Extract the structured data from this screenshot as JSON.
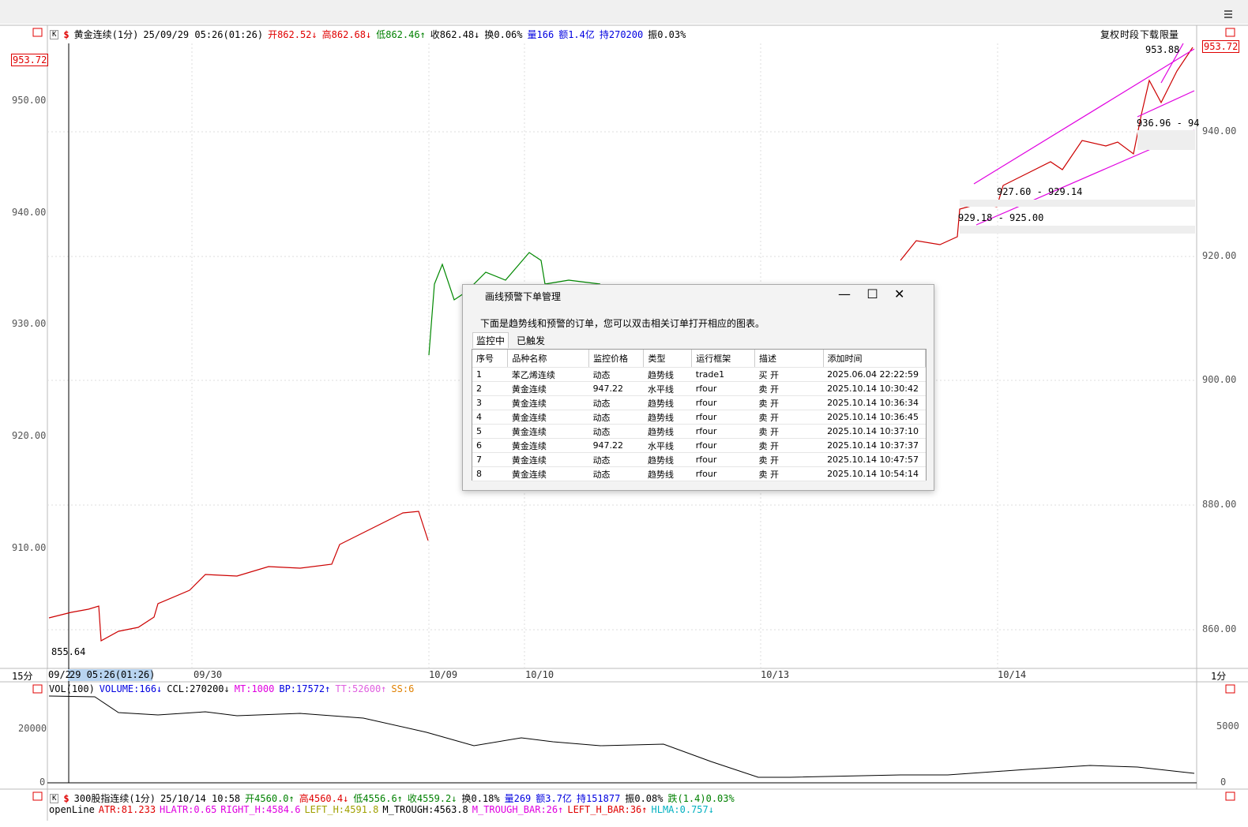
{
  "chart_header": {
    "button": "K",
    "symbol_mark": "$",
    "segments": [
      {
        "text": "黄金连续(1分)",
        "color": "#000"
      },
      {
        "text": "25/09/29 05:26(01:26)",
        "color": "#000"
      },
      {
        "text": "开862.52↓",
        "color": "#e00000"
      },
      {
        "text": "高862.68↓",
        "color": "#e00000"
      },
      {
        "text": "低862.46↑",
        "color": "#008000"
      },
      {
        "text": "收862.48↓",
        "color": "#000"
      },
      {
        "text": "换0.06%",
        "color": "#000"
      },
      {
        "text": "量166",
        "color": "#0000e0"
      },
      {
        "text": "额1.4亿",
        "color": "#0000e0"
      },
      {
        "text": "持270200",
        "color": "#0000e0"
      },
      {
        "text": "振0.03%",
        "color": "#000"
      }
    ]
  },
  "right_buttons": [
    "复权",
    "时段",
    "下载",
    "限量"
  ],
  "left_axis": {
    "current": "953.72",
    "labels": [
      "950.00",
      "940.00",
      "930.00",
      "920.00",
      "910.00"
    ]
  },
  "right_axis": {
    "current": "953.72",
    "labels": [
      "940.00",
      "920.00",
      "900.00",
      "880.00",
      "860.00"
    ]
  },
  "annotations": [
    "953.88",
    "936.96 - 94",
    "927.60 - 929.14",
    "929.18 - 925.00",
    "855.64"
  ],
  "time_axis": {
    "left_label": "15分",
    "right_label": "1分",
    "start": "09/2",
    "cursor": "29 05:26(01:26)",
    "dates": [
      "09/30",
      "10/09",
      "10/10",
      "10/13",
      "10/14"
    ]
  },
  "volume_header": [
    {
      "text": "VOL(100)",
      "color": "#000"
    },
    {
      "text": "VOLUME:166↓",
      "color": "#0000e0"
    },
    {
      "text": "CCL:270200↓",
      "color": "#000"
    },
    {
      "text": "MT:1000",
      "color": "#e000e0"
    },
    {
      "text": "BP:17572↑",
      "color": "#0000e0"
    },
    {
      "text": "TT:52600↑",
      "color": "#e060e0"
    },
    {
      "text": "SS:6",
      "color": "#e08000"
    }
  ],
  "volume_axis": {
    "left": [
      "20000",
      "0"
    ],
    "right": [
      "5000",
      "0"
    ]
  },
  "bottom_header": {
    "button": "K",
    "symbol_mark": "$",
    "segments": [
      {
        "text": "300股指连续(1分)",
        "color": "#000"
      },
      {
        "text": "25/10/14 10:58",
        "color": "#000"
      },
      {
        "text": "开4560.0↑",
        "color": "#008000"
      },
      {
        "text": "高4560.4↓",
        "color": "#e00000"
      },
      {
        "text": "低4556.6↑",
        "color": "#008000"
      },
      {
        "text": "收4559.2↓",
        "color": "#008000"
      },
      {
        "text": "换0.18%",
        "color": "#000"
      },
      {
        "text": "量269",
        "color": "#0000e0"
      },
      {
        "text": "额3.7亿",
        "color": "#0000e0"
      },
      {
        "text": "持151877",
        "color": "#0000e0"
      },
      {
        "text": "振0.08%",
        "color": "#000"
      },
      {
        "text": "跌(1.4)0.03%",
        "color": "#008000"
      }
    ]
  },
  "bottom_indicators": [
    {
      "text": "openLine",
      "color": "#000"
    },
    {
      "text": "ATR:81.233",
      "color": "#e00000"
    },
    {
      "text": "HLATR:0.65",
      "color": "#e000e0"
    },
    {
      "text": "RIGHT_H:4584.6",
      "color": "#e000e0"
    },
    {
      "text": "LEFT_H:4591.8",
      "color": "#a0a000"
    },
    {
      "text": "M_TROUGH:4563.8",
      "color": "#000"
    },
    {
      "text": "M_TROUGH_BAR:26↑",
      "color": "#e000e0"
    },
    {
      "text": "LEFT_H_BAR:36↑",
      "color": "#e00000"
    },
    {
      "text": "HLMA:0.757↓",
      "color": "#00b0c0"
    }
  ],
  "dialog": {
    "title": "画线预警下单管理",
    "description": "下面是趋势线和预警的订单，您可以双击相关订单打开相应的图表。",
    "tabs": [
      "监控中",
      "已触发"
    ],
    "columns": [
      "序号",
      "品种名称",
      "监控价格",
      "类型",
      "运行框架",
      "描述",
      "添加时间"
    ],
    "rows": [
      [
        "1",
        "苯乙烯连续",
        "动态",
        "趋势线",
        "trade1",
        "买 开",
        "2025.06.04 22:22:59"
      ],
      [
        "2",
        "黄金连续",
        "947.22",
        "水平线",
        "rfour",
        "卖 开",
        "2025.10.14 10:30:42"
      ],
      [
        "3",
        "黄金连续",
        "动态",
        "趋势线",
        "rfour",
        "卖 开",
        "2025.10.14 10:36:34"
      ],
      [
        "4",
        "黄金连续",
        "动态",
        "趋势线",
        "rfour",
        "卖 开",
        "2025.10.14 10:36:45"
      ],
      [
        "5",
        "黄金连续",
        "动态",
        "趋势线",
        "rfour",
        "卖 开",
        "2025.10.14 10:37:10"
      ],
      [
        "6",
        "黄金连续",
        "947.22",
        "水平线",
        "rfour",
        "卖 开",
        "2025.10.14 10:37:37"
      ],
      [
        "7",
        "黄金连续",
        "动态",
        "趋势线",
        "rfour",
        "卖 开",
        "2025.10.14 10:47:57"
      ],
      [
        "8",
        "黄金连续",
        "动态",
        "趋势线",
        "rfour",
        "卖 开",
        "2025.10.14 10:54:14"
      ]
    ]
  }
}
